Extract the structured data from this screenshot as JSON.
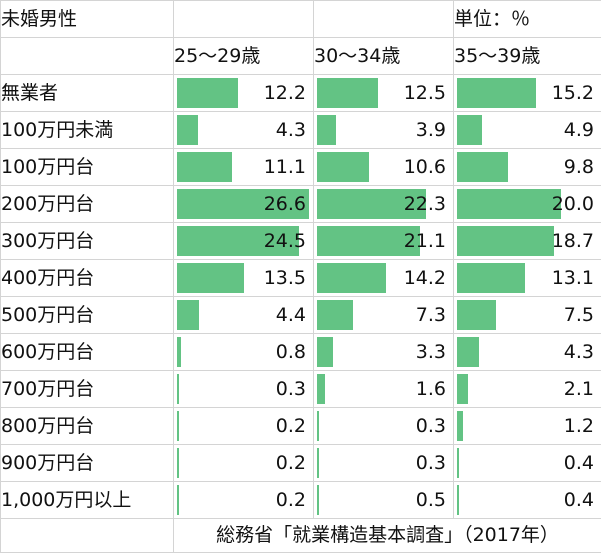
{
  "title": "未婚男性",
  "unit_label": "単位：％",
  "columns": [
    "25～29歳",
    "30～34歳",
    "35～39歳"
  ],
  "bar_color": "#63c384",
  "rows": [
    {
      "label": "無業者",
      "values": [
        "12.2",
        "12.5",
        "15.2"
      ]
    },
    {
      "label": "100万円未満",
      "values": [
        "4.3",
        "3.9",
        "4.9"
      ]
    },
    {
      "label": "100万円台",
      "values": [
        "11.1",
        "10.6",
        "9.8"
      ]
    },
    {
      "label": "200万円台",
      "values": [
        "26.6",
        "22.3",
        "20.0"
      ]
    },
    {
      "label": "300万円台",
      "values": [
        "24.5",
        "21.1",
        "18.7"
      ]
    },
    {
      "label": "400万円台",
      "values": [
        "13.5",
        "14.2",
        "13.1"
      ]
    },
    {
      "label": "500万円台",
      "values": [
        "4.4",
        "7.3",
        "7.5"
      ]
    },
    {
      "label": "600万円台",
      "values": [
        "0.8",
        "3.3",
        "4.3"
      ]
    },
    {
      "label": "700万円台",
      "values": [
        "0.3",
        "1.6",
        "2.1"
      ]
    },
    {
      "label": "800万円台",
      "values": [
        "0.2",
        "0.3",
        "1.2"
      ]
    },
    {
      "label": "900万円台",
      "values": [
        "0.2",
        "0.3",
        "0.4"
      ]
    },
    {
      "label": "1,000万円以上",
      "values": [
        "0.2",
        "0.5",
        "0.4"
      ]
    }
  ],
  "source": "総務省「就業構造基本調査」（2017年）",
  "data_bar_max": 26.6
}
